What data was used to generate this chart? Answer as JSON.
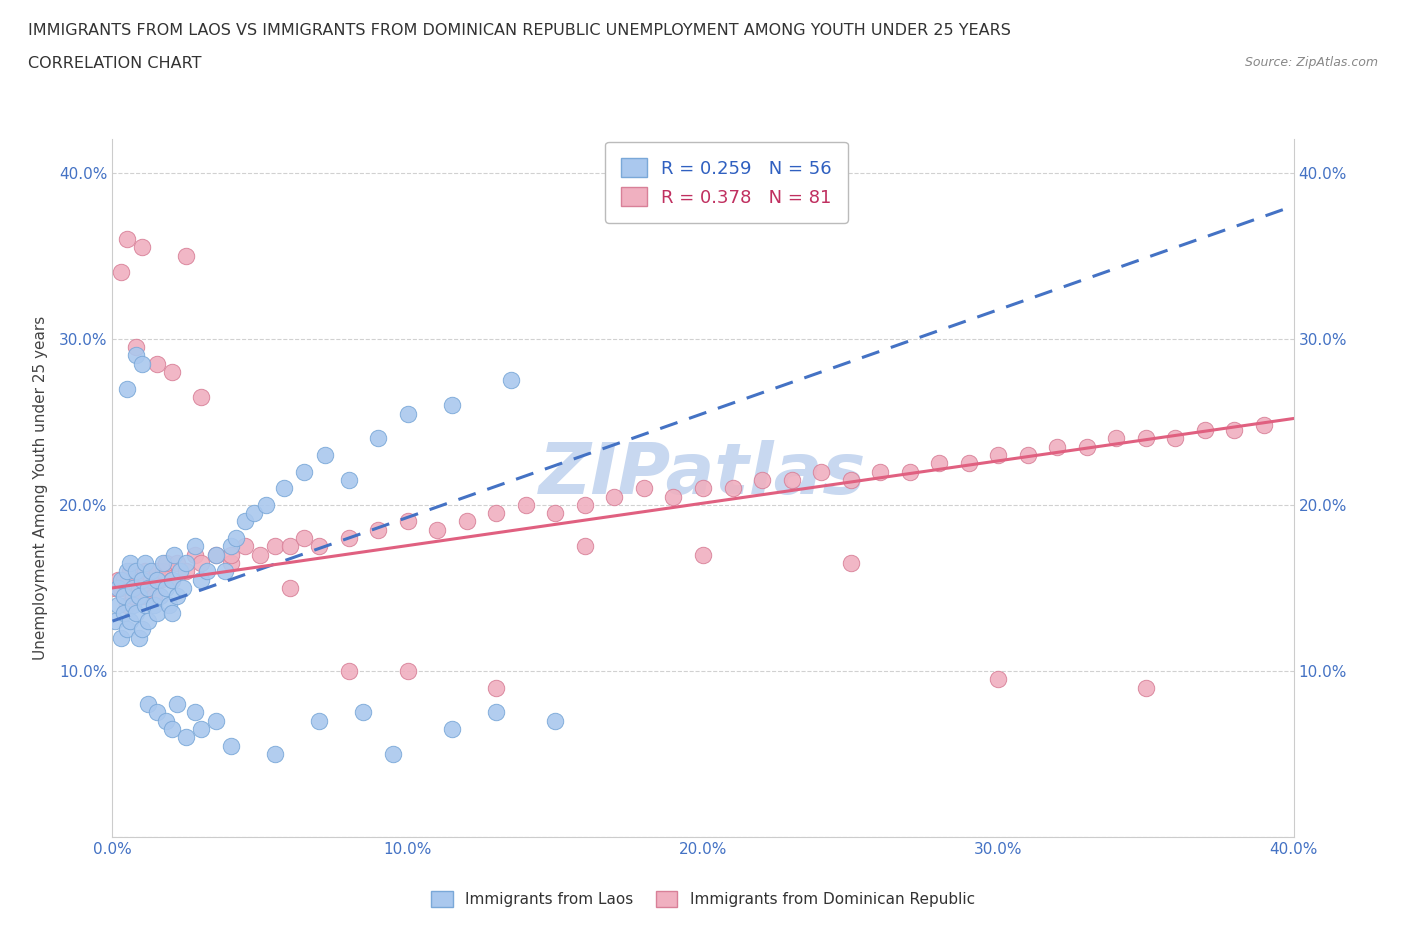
{
  "title_line1": "IMMIGRANTS FROM LAOS VS IMMIGRANTS FROM DOMINICAN REPUBLIC UNEMPLOYMENT AMONG YOUTH UNDER 25 YEARS",
  "title_line2": "CORRELATION CHART",
  "source_text": "Source: ZipAtlas.com",
  "ylabel": "Unemployment Among Youth under 25 years",
  "xlim": [
    0.0,
    0.4
  ],
  "ylim": [
    0.0,
    0.42
  ],
  "xticks": [
    0.0,
    0.1,
    0.2,
    0.3,
    0.4
  ],
  "yticks": [
    0.0,
    0.1,
    0.2,
    0.3,
    0.4
  ],
  "xticklabels": [
    "0.0%",
    "10.0%",
    "20.0%",
    "30.0%",
    "40.0%"
  ],
  "yticklabels": [
    "",
    "10.0%",
    "20.0%",
    "30.0%",
    "40.0%"
  ],
  "laos_color": "#aac8ee",
  "laos_edge_color": "#7aa8d8",
  "dr_color": "#f0b0c0",
  "dr_edge_color": "#d88098",
  "laos_line_color": "#4472c4",
  "dr_line_color": "#e06080",
  "legend_laos_R": "0.259",
  "legend_laos_N": "56",
  "legend_dr_R": "0.378",
  "legend_dr_N": "81",
  "watermark_text": "ZIPatlas",
  "watermark_color": "#c8d8f0",
  "grid_color": "#cccccc",
  "laos_scatter_x": [
    0.001,
    0.002,
    0.002,
    0.003,
    0.003,
    0.004,
    0.004,
    0.005,
    0.005,
    0.006,
    0.006,
    0.007,
    0.007,
    0.008,
    0.008,
    0.009,
    0.009,
    0.01,
    0.01,
    0.011,
    0.011,
    0.012,
    0.012,
    0.013,
    0.014,
    0.015,
    0.015,
    0.016,
    0.017,
    0.018,
    0.019,
    0.02,
    0.02,
    0.021,
    0.022,
    0.023,
    0.024,
    0.025,
    0.028,
    0.03,
    0.032,
    0.035,
    0.038,
    0.04,
    0.042,
    0.045,
    0.048,
    0.052,
    0.058,
    0.065,
    0.072,
    0.08,
    0.09,
    0.1,
    0.115,
    0.135
  ],
  "laos_scatter_y": [
    0.13,
    0.14,
    0.15,
    0.12,
    0.155,
    0.135,
    0.145,
    0.125,
    0.16,
    0.13,
    0.165,
    0.14,
    0.15,
    0.135,
    0.16,
    0.12,
    0.145,
    0.155,
    0.125,
    0.14,
    0.165,
    0.13,
    0.15,
    0.16,
    0.14,
    0.135,
    0.155,
    0.145,
    0.165,
    0.15,
    0.14,
    0.135,
    0.155,
    0.17,
    0.145,
    0.16,
    0.15,
    0.165,
    0.175,
    0.155,
    0.16,
    0.17,
    0.16,
    0.175,
    0.18,
    0.19,
    0.195,
    0.2,
    0.21,
    0.22,
    0.23,
    0.215,
    0.24,
    0.255,
    0.26,
    0.275
  ],
  "laos_outlier_x": [
    0.005,
    0.008,
    0.01,
    0.012,
    0.015,
    0.018,
    0.02,
    0.022,
    0.025,
    0.028,
    0.03,
    0.035,
    0.04,
    0.055,
    0.07,
    0.085,
    0.095,
    0.115,
    0.13,
    0.15
  ],
  "laos_outlier_y": [
    0.27,
    0.29,
    0.285,
    0.08,
    0.075,
    0.07,
    0.065,
    0.08,
    0.06,
    0.075,
    0.065,
    0.07,
    0.055,
    0.05,
    0.07,
    0.075,
    0.05,
    0.065,
    0.075,
    0.07
  ],
  "dr_scatter_x": [
    0.001,
    0.002,
    0.003,
    0.004,
    0.005,
    0.006,
    0.007,
    0.008,
    0.009,
    0.01,
    0.011,
    0.012,
    0.013,
    0.014,
    0.015,
    0.016,
    0.017,
    0.018,
    0.02,
    0.022,
    0.025,
    0.028,
    0.03,
    0.035,
    0.04,
    0.045,
    0.05,
    0.055,
    0.06,
    0.065,
    0.07,
    0.08,
    0.09,
    0.1,
    0.11,
    0.12,
    0.13,
    0.14,
    0.15,
    0.16,
    0.17,
    0.18,
    0.19,
    0.2,
    0.21,
    0.22,
    0.23,
    0.24,
    0.25,
    0.26,
    0.27,
    0.28,
    0.29,
    0.3,
    0.31,
    0.32,
    0.33,
    0.34,
    0.35,
    0.36,
    0.37,
    0.38,
    0.39,
    0.015,
    0.025,
    0.01,
    0.008,
    0.005,
    0.003,
    0.02,
    0.03,
    0.04,
    0.06,
    0.08,
    0.1,
    0.13,
    0.16,
    0.2,
    0.25,
    0.3,
    0.35
  ],
  "dr_scatter_y": [
    0.15,
    0.155,
    0.15,
    0.155,
    0.14,
    0.16,
    0.145,
    0.155,
    0.15,
    0.145,
    0.16,
    0.15,
    0.155,
    0.145,
    0.16,
    0.155,
    0.16,
    0.165,
    0.155,
    0.165,
    0.16,
    0.17,
    0.165,
    0.17,
    0.165,
    0.175,
    0.17,
    0.175,
    0.175,
    0.18,
    0.175,
    0.18,
    0.185,
    0.19,
    0.185,
    0.19,
    0.195,
    0.2,
    0.195,
    0.2,
    0.205,
    0.21,
    0.205,
    0.21,
    0.21,
    0.215,
    0.215,
    0.22,
    0.215,
    0.22,
    0.22,
    0.225,
    0.225,
    0.23,
    0.23,
    0.235,
    0.235,
    0.24,
    0.24,
    0.24,
    0.245,
    0.245,
    0.248,
    0.285,
    0.35,
    0.355,
    0.295,
    0.36,
    0.34,
    0.28,
    0.265,
    0.17,
    0.15,
    0.1,
    0.1,
    0.09,
    0.175,
    0.17,
    0.165,
    0.095,
    0.09
  ]
}
